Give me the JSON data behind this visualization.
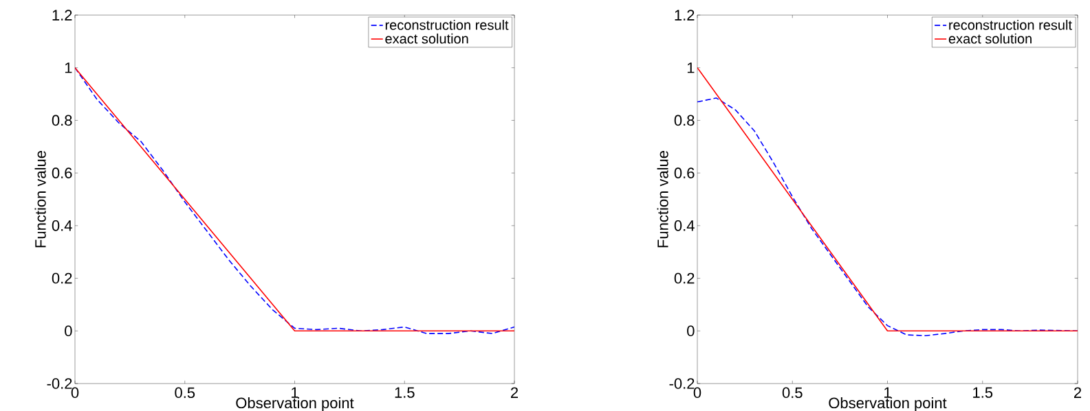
{
  "chart_data": [
    {
      "type": "line",
      "xlabel": "Observation point",
      "ylabel": "Function value",
      "xlim": [
        0,
        2
      ],
      "ylim": [
        -0.2,
        1.2
      ],
      "xticks": [
        0,
        0.5,
        1,
        1.5,
        2
      ],
      "yticks": [
        -0.2,
        0,
        0.2,
        0.4,
        0.6,
        0.8,
        1,
        1.2
      ],
      "legend": "top right",
      "grid": false,
      "series": [
        {
          "name": "reconstruction result",
          "color": "#0000ff",
          "line_style": "dashed",
          "x": [
            0,
            0.1,
            0.2,
            0.3,
            0.4,
            0.5,
            0.6,
            0.7,
            0.8,
            0.9,
            1.0,
            1.1,
            1.2,
            1.3,
            1.4,
            1.5,
            1.6,
            1.7,
            1.8,
            1.9,
            2.0
          ],
          "values": [
            1,
            0.88,
            0.79,
            0.72,
            0.61,
            0.49,
            0.38,
            0.27,
            0.17,
            0.08,
            0.01,
            0.005,
            0.01,
            0,
            0.005,
            0.015,
            -0.01,
            -0.01,
            0,
            -0.01,
            0.015
          ]
        },
        {
          "name": "exact solution",
          "color": "#ff0000",
          "line_style": "solid",
          "x": [
            0,
            1,
            2
          ],
          "values": [
            1,
            0,
            0
          ]
        }
      ]
    },
    {
      "type": "line",
      "xlabel": "Observation point",
      "ylabel": "Function value",
      "xlim": [
        0,
        2
      ],
      "ylim": [
        -0.2,
        1.2
      ],
      "xticks": [
        0,
        0.5,
        1,
        1.5,
        2
      ],
      "yticks": [
        -0.2,
        0,
        0.2,
        0.4,
        0.6,
        0.8,
        1,
        1.2
      ],
      "legend": "top right",
      "grid": false,
      "series": [
        {
          "name": "reconstruction result",
          "color": "#0000ff",
          "line_style": "dashed",
          "x": [
            0,
            0.1,
            0.2,
            0.3,
            0.4,
            0.5,
            0.6,
            0.7,
            0.8,
            0.9,
            1.0,
            1.1,
            1.2,
            1.3,
            1.4,
            1.5,
            1.6,
            1.7,
            1.8,
            2.0
          ],
          "values": [
            0.87,
            0.885,
            0.84,
            0.76,
            0.64,
            0.51,
            0.39,
            0.29,
            0.19,
            0.09,
            0.02,
            -0.015,
            -0.018,
            -0.01,
            0,
            0.005,
            0.005,
            0,
            0.003,
            0
          ]
        },
        {
          "name": "exact solution",
          "color": "#ff0000",
          "line_style": "solid",
          "x": [
            0,
            1,
            2
          ],
          "values": [
            1,
            0,
            0
          ]
        }
      ]
    }
  ]
}
